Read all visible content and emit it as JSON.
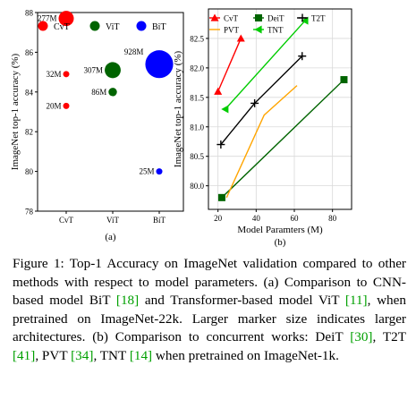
{
  "chart_data": [
    {
      "type": "scatter",
      "panel_label": "(a)",
      "ylabel": "ImageNet top-1 accuracy (%)",
      "categories": [
        "CvT",
        "ViT",
        "BiT"
      ],
      "ylim": [
        78,
        88
      ],
      "yticks": [
        "78",
        "80",
        "82",
        "84",
        "86",
        "88"
      ],
      "legend": {
        "placement": "top",
        "entries": [
          "CvT",
          "ViT",
          "BiT"
        ]
      },
      "series": [
        {
          "name": "CvT",
          "color": "#ff0000",
          "points": [
            {
              "category": "CvT",
              "y": 87.7,
              "size_label": "277M",
              "params": 277
            },
            {
              "category": "CvT",
              "y": 84.9,
              "size_label": "32M",
              "params": 32
            },
            {
              "category": "CvT",
              "y": 83.3,
              "size_label": "20M",
              "params": 20
            }
          ]
        },
        {
          "name": "ViT",
          "color": "#006400",
          "points": [
            {
              "category": "ViT",
              "y": 85.1,
              "size_label": "307M",
              "params": 307
            },
            {
              "category": "ViT",
              "y": 84.0,
              "size_label": "86M",
              "params": 86
            }
          ]
        },
        {
          "name": "BiT",
          "color": "#0000ff",
          "points": [
            {
              "category": "BiT",
              "y": 85.4,
              "size_label": "928M",
              "params": 928
            },
            {
              "category": "BiT",
              "y": 80.0,
              "size_label": "25M",
              "params": 25
            }
          ]
        }
      ]
    },
    {
      "type": "line",
      "panel_label": "(b)",
      "xlabel": "Model Paramters (M)",
      "ylabel": "ImageNet top-1 accuracy (%)",
      "xlim": [
        15,
        90
      ],
      "ylim": [
        79.6,
        83.0
      ],
      "xticks": [
        20,
        40,
        60,
        80
      ],
      "yticks": [
        "80.0",
        "80.5",
        "81.0",
        "81.5",
        "82.0",
        "82.5"
      ],
      "grid": true,
      "legend": {
        "placement": "top",
        "columns": 3
      },
      "series": [
        {
          "name": "CvT",
          "color": "#ff0000",
          "marker": "triangle-up",
          "x": [
            20,
            32
          ],
          "y": [
            81.6,
            82.5
          ]
        },
        {
          "name": "DeiT",
          "color": "#006400",
          "marker": "square",
          "x": [
            22,
            86
          ],
          "y": [
            79.8,
            81.8
          ]
        },
        {
          "name": "T2T",
          "color": "#000000",
          "marker": "plus",
          "x": [
            21.5,
            39.2,
            64.1
          ],
          "y": [
            80.7,
            81.4,
            82.2
          ]
        },
        {
          "name": "PVT",
          "color": "#ffa500",
          "marker": "none",
          "x": [
            24.5,
            44.2,
            61.4
          ],
          "y": [
            79.8,
            81.2,
            81.7
          ]
        },
        {
          "name": "TNT",
          "color": "#00cc00",
          "marker": "triangle-left",
          "x": [
            23.8,
            65.6
          ],
          "y": [
            81.3,
            82.8
          ]
        }
      ]
    }
  ],
  "caption": {
    "text1": "Figure 1: Top-1 Accuracy on ImageNet validation compared to other methods with respect to model parameters. (a) Comparison to CNN-based model BiT ",
    "ref_bit": "[18]",
    "text2": " and Transformer-based model ViT ",
    "ref_vit": "[11]",
    "text3": ", when pretrained on ImageNet-22k. Larger marker size indicates larger architectures. (b) Comparison to concurrent works: DeiT ",
    "ref_deit": "[30]",
    "text4": ", T2T ",
    "ref_t2t": "[41]",
    "text5": ", PVT ",
    "ref_pvt": "[34]",
    "text6": ", TNT ",
    "ref_tnt": "[14]",
    "text7": " when pretrained on ImageNet-1k."
  }
}
